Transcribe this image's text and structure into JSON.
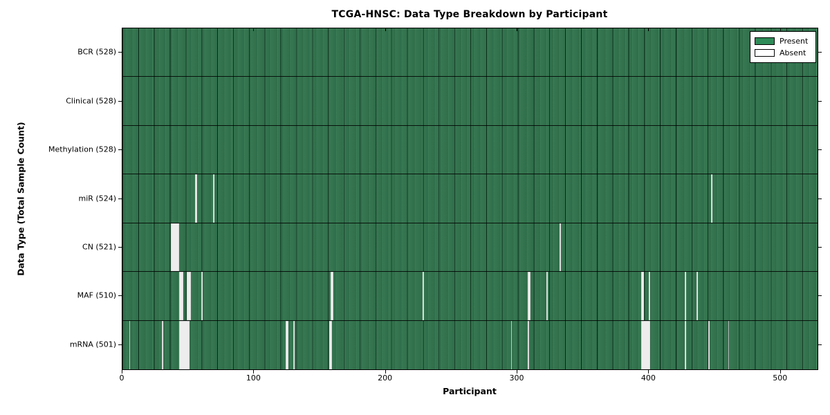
{
  "window": {
    "title": "TCGA-HNSC: Data Type Breakdown by Participant"
  },
  "chart_data": {
    "type": "heatmap",
    "title": "TCGA-HNSC: Data Type Breakdown by Participant",
    "xlabel": "Participant",
    "ylabel": "Data Type (Total Sample Count)",
    "x_range": [
      0,
      528
    ],
    "x_ticks": [
      0,
      100,
      200,
      300,
      400,
      500
    ],
    "total_participants": 528,
    "grid": false,
    "legend": {
      "position": "upper right",
      "entries": [
        {
          "label": "Present",
          "color": "#2e8b57",
          "swatch": "present-swatch"
        },
        {
          "label": "Absent",
          "color": "#ffffff",
          "swatch": "absent-swatch"
        }
      ]
    },
    "colors": {
      "present": "#2e8b57",
      "present_fill": "#2e7a4e",
      "absent": "#ededed",
      "axis": "#000000"
    },
    "rows": [
      {
        "name": "BCR",
        "label": "BCR (528)",
        "present_count": 528,
        "absent_runs": []
      },
      {
        "name": "Clinical",
        "label": "Clinical (528)",
        "present_count": 528,
        "absent_runs": []
      },
      {
        "name": "Methylation",
        "label": "Methylation (528)",
        "present_count": 528,
        "absent_runs": []
      },
      {
        "name": "miR",
        "label": "miR (524)",
        "present_count": 524,
        "absent_runs": [
          {
            "start": 55,
            "width": 2
          },
          {
            "start": 69,
            "width": 1
          },
          {
            "start": 447,
            "width": 1
          }
        ]
      },
      {
        "name": "CN",
        "label": "CN (521)",
        "present_count": 521,
        "absent_runs": [
          {
            "start": 37,
            "width": 6
          },
          {
            "start": 332,
            "width": 1
          }
        ]
      },
      {
        "name": "MAF",
        "label": "MAF (510)",
        "present_count": 510,
        "absent_runs": [
          {
            "start": 43,
            "width": 3
          },
          {
            "start": 49,
            "width": 3
          },
          {
            "start": 60,
            "width": 1
          },
          {
            "start": 158,
            "width": 2
          },
          {
            "start": 228,
            "width": 1
          },
          {
            "start": 308,
            "width": 2
          },
          {
            "start": 322,
            "width": 1
          },
          {
            "start": 394,
            "width": 2
          },
          {
            "start": 400,
            "width": 1
          },
          {
            "start": 427,
            "width": 1
          },
          {
            "start": 436,
            "width": 1
          }
        ]
      },
      {
        "name": "mRNA",
        "label": "mRNA (501)",
        "present_count": 501,
        "absent_runs": [
          {
            "start": 5,
            "width": 1
          },
          {
            "start": 30,
            "width": 1
          },
          {
            "start": 43,
            "width": 8
          },
          {
            "start": 124,
            "width": 2
          },
          {
            "start": 130,
            "width": 1
          },
          {
            "start": 157,
            "width": 2
          },
          {
            "start": 295,
            "width": 1
          },
          {
            "start": 308,
            "width": 1
          },
          {
            "start": 394,
            "width": 7
          },
          {
            "start": 427,
            "width": 1
          },
          {
            "start": 445,
            "width": 1
          },
          {
            "start": 460,
            "width": 1
          }
        ]
      }
    ]
  }
}
